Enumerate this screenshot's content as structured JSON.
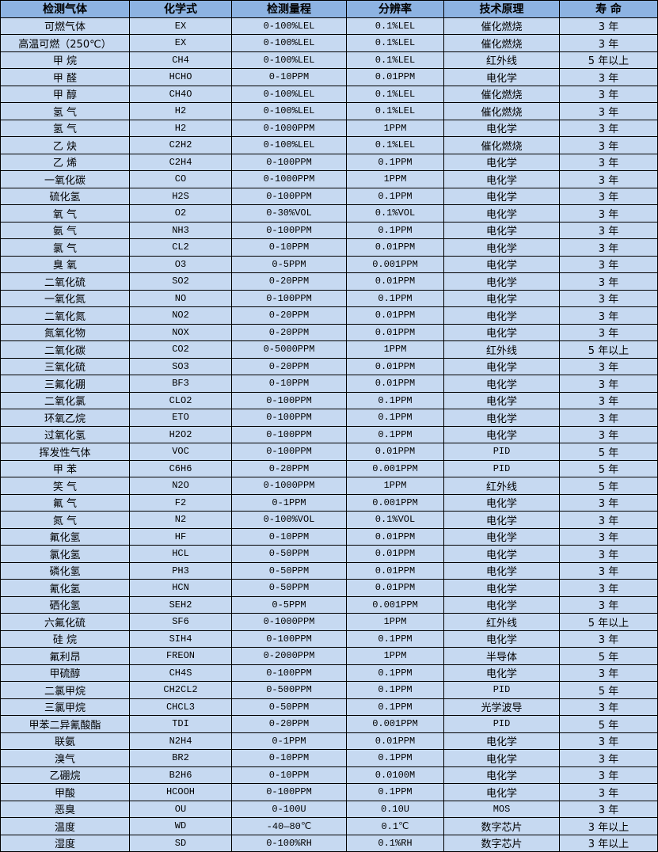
{
  "colors": {
    "header_bg": "#8db3e2",
    "row_bg": "#c6d9f1",
    "border": "#000000"
  },
  "table": {
    "headers": [
      "检测气体",
      "化学式",
      "检测量程",
      "分辨率",
      "技术原理",
      "寿 命"
    ],
    "rows": [
      [
        "可燃气体",
        "EX",
        "0-100%LEL",
        "0.1%LEL",
        "催化燃烧",
        "3 年"
      ],
      [
        "高温可燃（250℃）",
        "EX",
        "0-100%LEL",
        "0.1%LEL",
        "催化燃烧",
        "3 年"
      ],
      [
        "甲 烷",
        "CH4",
        "0-100%LEL",
        "0.1%LEL",
        "红外线",
        "5 年以上"
      ],
      [
        "甲 醛",
        "HCHO",
        "0-10PPM",
        "0.01PPM",
        "电化学",
        "3 年"
      ],
      [
        "甲 醇",
        "CH4O",
        "0-100%LEL",
        "0.1%LEL",
        "催化燃烧",
        "3 年"
      ],
      [
        "氢 气",
        "H2",
        "0-100%LEL",
        "0.1%LEL",
        "催化燃烧",
        "3 年"
      ],
      [
        "氢 气",
        "H2",
        "0-1000PPM",
        "1PPM",
        "电化学",
        "3 年"
      ],
      [
        "乙 炔",
        "C2H2",
        "0-100%LEL",
        "0.1%LEL",
        "催化燃烧",
        "3 年"
      ],
      [
        "乙 烯",
        "C2H4",
        "0-100PPM",
        "0.1PPM",
        "电化学",
        "3 年"
      ],
      [
        "一氧化碳",
        "CO",
        "0-1000PPM",
        "1PPM",
        "电化学",
        "3 年"
      ],
      [
        "硫化氢",
        "H2S",
        "0-100PPM",
        "0.1PPM",
        "电化学",
        "3 年"
      ],
      [
        "氧 气",
        "O2",
        "0-30%VOL",
        "0.1%VOL",
        "电化学",
        "3 年"
      ],
      [
        "氨 气",
        "NH3",
        "0-100PPM",
        "0.1PPM",
        "电化学",
        "3 年"
      ],
      [
        "氯 气",
        "CL2",
        "0-10PPM",
        "0.01PPM",
        "电化学",
        "3 年"
      ],
      [
        "臭 氧",
        "O3",
        "0-5PPM",
        "0.001PPM",
        "电化学",
        "3 年"
      ],
      [
        "二氧化硫",
        "SO2",
        "0-20PPM",
        "0.01PPM",
        "电化学",
        "3 年"
      ],
      [
        "一氧化氮",
        "NO",
        "0-100PPM",
        "0.1PPM",
        "电化学",
        "3 年"
      ],
      [
        "二氧化氮",
        "NO2",
        "0-20PPM",
        "0.01PPM",
        "电化学",
        "3 年"
      ],
      [
        "氮氧化物",
        "NOX",
        "0-20PPM",
        "0.01PPM",
        "电化学",
        "3 年"
      ],
      [
        "二氧化碳",
        "CO2",
        "0-5000PPM",
        "1PPM",
        "红外线",
        "5 年以上"
      ],
      [
        "三氧化硫",
        "SO3",
        "0-20PPM",
        "0.01PPM",
        "电化学",
        "3 年"
      ],
      [
        "三氟化硼",
        "BF3",
        "0-10PPM",
        "0.01PPM",
        "电化学",
        "3 年"
      ],
      [
        "二氧化氯",
        "CLO2",
        "0-100PPM",
        "0.1PPM",
        "电化学",
        "3 年"
      ],
      [
        "环氧乙烷",
        "ETO",
        "0-100PPM",
        "0.1PPM",
        "电化学",
        "3 年"
      ],
      [
        "过氧化氢",
        "H2O2",
        "0-100PPM",
        "0.1PPM",
        "电化学",
        "3 年"
      ],
      [
        "挥发性气体",
        "VOC",
        "0-100PPM",
        "0.01PPM",
        "PID",
        "5 年"
      ],
      [
        "甲 苯",
        "C6H6",
        "0-20PPM",
        "0.001PPM",
        "PID",
        "5 年"
      ],
      [
        "笑 气",
        "N2O",
        "0-1000PPM",
        "1PPM",
        "红外线",
        "5 年"
      ],
      [
        "氟 气",
        "F2",
        "0-1PPM",
        "0.001PPM",
        "电化学",
        "3 年"
      ],
      [
        "氮 气",
        "N2",
        "0-100%VOL",
        "0.1%VOL",
        "电化学",
        "3 年"
      ],
      [
        "氟化氢",
        "HF",
        "0-10PPM",
        "0.01PPM",
        "电化学",
        "3 年"
      ],
      [
        "氯化氢",
        "HCL",
        "0-50PPM",
        "0.01PPM",
        "电化学",
        "3 年"
      ],
      [
        "磷化氢",
        "PH3",
        "0-50PPM",
        "0.01PPM",
        "电化学",
        "3 年"
      ],
      [
        "氰化氢",
        "HCN",
        "0-50PPM",
        "0.01PPM",
        "电化学",
        "3 年"
      ],
      [
        "硒化氢",
        "SEH2",
        "0-5PPM",
        "0.001PPM",
        "电化学",
        "3 年"
      ],
      [
        "六氟化硫",
        "SF6",
        "0-1000PPM",
        "1PPM",
        "红外线",
        "5 年以上"
      ],
      [
        "硅 烷",
        "SIH4",
        "0-100PPM",
        "0.1PPM",
        "电化学",
        "3 年"
      ],
      [
        "氟利昂",
        "FREON",
        "0-2000PPM",
        "1PPM",
        "半导体",
        "5 年"
      ],
      [
        "甲硫醇",
        "CH4S",
        "0-100PPM",
        "0.1PPM",
        "电化学",
        "3 年"
      ],
      [
        "二氯甲烷",
        "CH2CL2",
        "0-500PPM",
        "0.1PPM",
        "PID",
        "5 年"
      ],
      [
        "三氯甲烷",
        "CHCL3",
        "0-50PPM",
        "0.1PPM",
        "光学波导",
        "3 年"
      ],
      [
        "甲苯二异氰酸酯",
        "TDI",
        "0-20PPM",
        "0.001PPM",
        "PID",
        "5 年"
      ],
      [
        "联氨",
        "N2H4",
        "0-1PPM",
        "0.01PPM",
        "电化学",
        "3 年"
      ],
      [
        "溴气",
        "BR2",
        "0-10PPM",
        "0.1PPM",
        "电化学",
        "3 年"
      ],
      [
        "乙硼烷",
        "B2H6",
        "0-10PPM",
        "0.0100M",
        "电化学",
        "3 年"
      ],
      [
        "甲酸",
        "HCOOH",
        "0-100PPM",
        "0.1PPM",
        "电化学",
        "3 年"
      ],
      [
        "恶臭",
        "OU",
        "0-100U",
        "0.10U",
        "MOS",
        "3 年"
      ],
      [
        "温度",
        "WD",
        "-40—80℃",
        "0.1℃",
        "数字芯片",
        "3 年以上"
      ],
      [
        "湿度",
        "SD",
        "0-100%RH",
        "0.1%RH",
        "数字芯片",
        "3 年以上"
      ]
    ]
  }
}
